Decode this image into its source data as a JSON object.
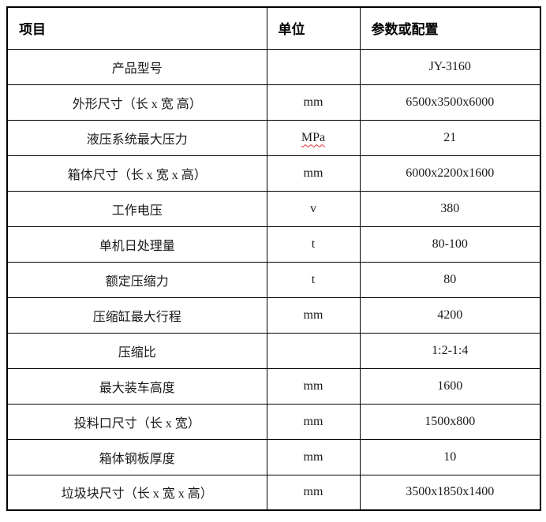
{
  "colors": {
    "border": "#000000",
    "text": "#1a1a1a",
    "background": "#ffffff",
    "spellcheck_underline": "#e03030"
  },
  "table": {
    "header": {
      "item": "项目",
      "unit": "单位",
      "params": "参数或配置"
    },
    "rows": [
      {
        "label": "产品型号",
        "unit": "",
        "value": "JY-3160"
      },
      {
        "label": "外形尺寸（长 x 宽 高）",
        "unit": "mm",
        "value": "6500x3500x6000"
      },
      {
        "label": "液压系统最大压力",
        "unit": "MPa",
        "value": "21",
        "unit_spellcheck": true
      },
      {
        "label": "箱体尺寸（长 x 宽 x 高）",
        "unit": "mm",
        "value": "6000x2200x1600"
      },
      {
        "label": "工作电压",
        "unit": "v",
        "value": "380"
      },
      {
        "label": "单机日处理量",
        "unit": "t",
        "value": "80-100"
      },
      {
        "label": "额定压缩力",
        "unit": "t",
        "value": "80"
      },
      {
        "label": "压缩缸最大行程",
        "unit": "mm",
        "value": "4200"
      },
      {
        "label": "压缩比",
        "unit": "",
        "value": "1:2-1:4"
      },
      {
        "label": "最大装车高度",
        "unit": "mm",
        "value": "1600"
      },
      {
        "label": "投料口尺寸（长 x 宽）",
        "unit": "mm",
        "value": "1500x800"
      },
      {
        "label": "箱体钢板厚度",
        "unit": "mm",
        "value": "10"
      },
      {
        "label": "垃圾块尺寸（长 x 宽 x 高）",
        "unit": "mm",
        "value": "3500x1850x1400"
      }
    ]
  }
}
